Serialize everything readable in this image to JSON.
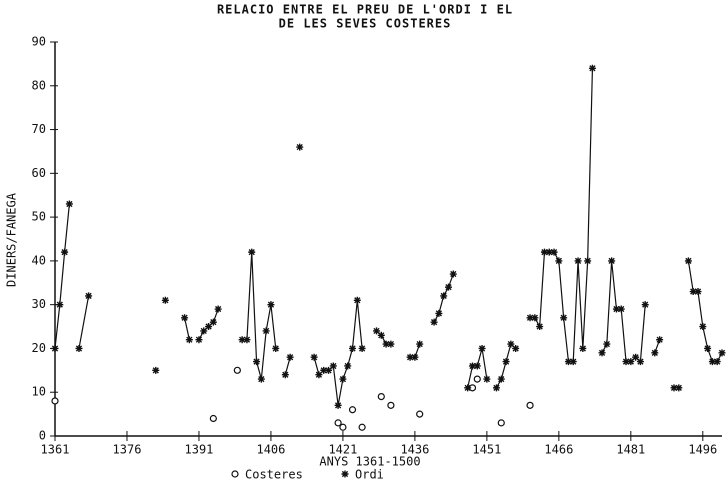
{
  "chart_data": {
    "type": "line",
    "title": [
      "RELACIO ENTRE EL PREU DE L'ORDI I EL",
      "DE LES SEVES COSTERES"
    ],
    "x_label": "ANYS 1361-1500",
    "y_label": "DINERS/FANEGA",
    "xlim": [
      1361,
      1500
    ],
    "ylim": [
      0,
      90
    ],
    "xticks": [
      1361,
      1376,
      1391,
      1406,
      1421,
      1436,
      1451,
      1466,
      1481,
      1496
    ],
    "yticks": [
      0,
      10,
      20,
      30,
      40,
      50,
      60,
      70,
      80,
      90
    ],
    "legend": "bottom",
    "series": [
      {
        "name": "Costeres",
        "color": "#111111",
        "marker": "circle",
        "line": false,
        "x": [
          1361,
          1394,
          1399,
          1420,
          1421,
          1423,
          1425,
          1429,
          1431,
          1437,
          1448,
          1449,
          1454,
          1460
        ],
        "values": [
          8,
          4,
          15,
          3,
          2,
          6,
          2,
          9,
          7,
          5,
          11,
          13,
          3,
          7
        ]
      },
      {
        "name": "Ordi",
        "color": "#111111",
        "marker": "star",
        "line": true,
        "x": [
          1361,
          1362,
          1363,
          1364,
          1365,
          1366,
          1368,
          1375,
          1382,
          1383,
          1384,
          1386,
          1388,
          1389,
          1390,
          1391,
          1392,
          1393,
          1394,
          1395,
          1397,
          1400,
          1401,
          1402,
          1403,
          1404,
          1405,
          1406,
          1407,
          1408,
          1409,
          1410,
          1411,
          1412,
          1413,
          1415,
          1416,
          1417,
          1418,
          1419,
          1420,
          1421,
          1422,
          1423,
          1424,
          1425,
          1426,
          1428,
          1429,
          1430,
          1431,
          1433,
          1435,
          1436,
          1437,
          1438,
          1440,
          1441,
          1442,
          1443,
          1444,
          1445,
          1447,
          1448,
          1449,
          1450,
          1451,
          1452,
          1453,
          1454,
          1455,
          1456,
          1457,
          1458,
          1460,
          1461,
          1462,
          1463,
          1464,
          1465,
          1466,
          1467,
          1468,
          1469,
          1470,
          1471,
          1472,
          1473,
          1474,
          1475,
          1476,
          1477,
          1478,
          1479,
          1480,
          1481,
          1482,
          1483,
          1484,
          1485,
          1486,
          1487,
          1488,
          1490,
          1491,
          1492,
          1493,
          1494,
          1495,
          1496,
          1497,
          1498,
          1499,
          1500
        ],
        "values": [
          20,
          30,
          42,
          53,
          null,
          20,
          32,
          null,
          15,
          null,
          31,
          null,
          27,
          22,
          null,
          22,
          24,
          25,
          26,
          29,
          null,
          22,
          22,
          42,
          17,
          13,
          24,
          30,
          20,
          null,
          14,
          18,
          null,
          66,
          null,
          18,
          14,
          15,
          15,
          16,
          7,
          13,
          16,
          20,
          31,
          20,
          null,
          24,
          23,
          21,
          21,
          null,
          18,
          18,
          21,
          null,
          26,
          28,
          32,
          34,
          37,
          null,
          11,
          16,
          16,
          20,
          13,
          null,
          11,
          13,
          17,
          21,
          20,
          null,
          27,
          27,
          25,
          42,
          42,
          42,
          40,
          27,
          17,
          17,
          40,
          20,
          40,
          84,
          null,
          19,
          21,
          40,
          29,
          29,
          17,
          17,
          18,
          17,
          30,
          null,
          19,
          22,
          null,
          11,
          11,
          null,
          40,
          33,
          33,
          25,
          20,
          17,
          17,
          19
        ]
      }
    ]
  }
}
